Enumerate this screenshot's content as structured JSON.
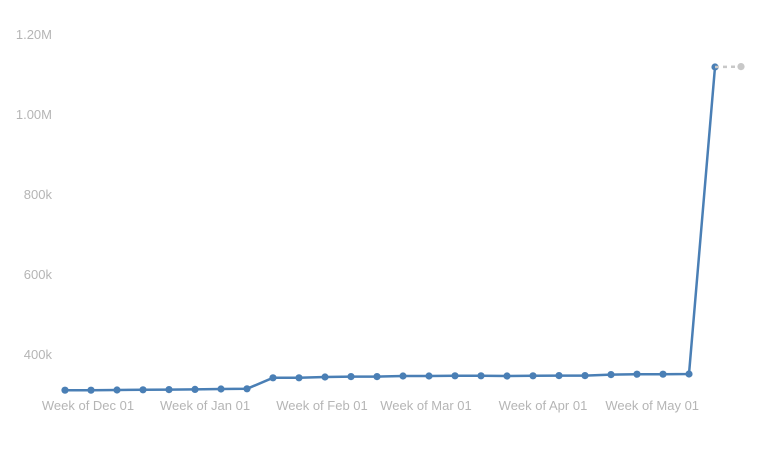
{
  "chart_data": {
    "type": "line",
    "y_tick_labels": [
      "400k",
      "600k",
      "800k",
      "1.00M",
      "1.20M"
    ],
    "y_tick_values": [
      400000,
      600000,
      800000,
      1000000,
      1200000
    ],
    "ylim": [
      290000,
      1200000
    ],
    "x_tick_labels": [
      {
        "label": "Week of Dec 01",
        "index": 0
      },
      {
        "label": "Week of Jan 01",
        "index": 4.5
      },
      {
        "label": "Week of Feb 01",
        "index": 9
      },
      {
        "label": "Week of Mar 01",
        "index": 13
      },
      {
        "label": "Week of Apr 01",
        "index": 17.5
      },
      {
        "label": "Week of May 01",
        "index": 21.7
      }
    ],
    "grid": false,
    "series": [
      {
        "color": "#4a7fb5",
        "values": [
          312000,
          312000,
          312500,
          313000,
          313500,
          314000,
          315000,
          315500,
          343000,
          343000,
          345000,
          346000,
          346000,
          347500,
          347500,
          348000,
          348000,
          347500,
          348000,
          348500,
          348500,
          351000,
          352000,
          352000,
          352500,
          1120000
        ]
      },
      {
        "color": "#c8c8c8",
        "style": "dashed",
        "start_index": 25,
        "values": [
          1120000,
          1121000
        ]
      }
    ]
  }
}
